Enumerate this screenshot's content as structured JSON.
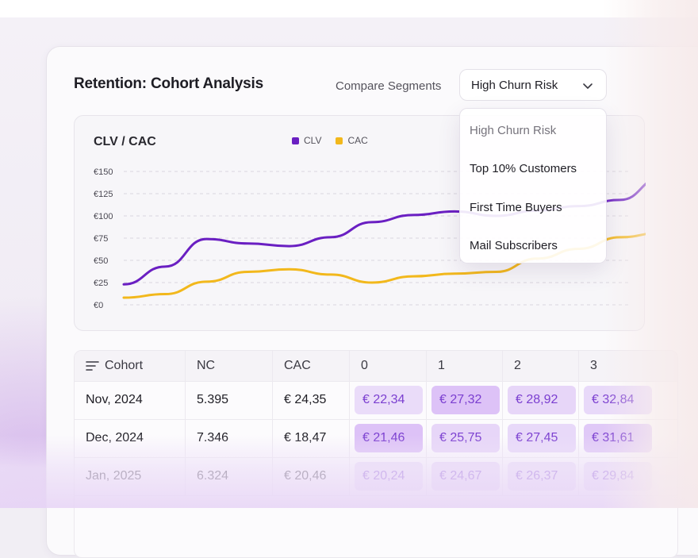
{
  "header": {
    "title": "Retention: Cohort Analysis",
    "compare_label": "Compare Segments",
    "selected_segment": "High Churn Risk"
  },
  "dropdown": {
    "options": [
      "High Churn Risk",
      "Top 10% Customers",
      "First Time Buyers",
      "Mail Subscribers"
    ]
  },
  "chart": {
    "title": "CLV / CAC",
    "legend": [
      {
        "label": "CLV",
        "color": "#6a1fc2"
      },
      {
        "label": "CAC",
        "color": "#f2b81c"
      }
    ]
  },
  "chart_data": {
    "type": "line",
    "title": "CLV / CAC",
    "x": [
      "1",
      "2",
      "3",
      "4",
      "5",
      "6",
      "7",
      "8",
      "9",
      "10",
      "11",
      "12",
      "13",
      "14"
    ],
    "ylim": [
      0,
      150
    ],
    "yticks": [
      "€0",
      "€25",
      "€50",
      "€75",
      "€100",
      "€125",
      "€150"
    ],
    "grid": true,
    "legend_position": "top",
    "series": [
      {
        "name": "CLV",
        "color": "#6a1fc2",
        "values": [
          23,
          43,
          74,
          69,
          66,
          76,
          93,
          101,
          105,
          100,
          106,
          111,
          118,
          143
        ]
      },
      {
        "name": "CAC",
        "color": "#f2b81c",
        "values": [
          8,
          12,
          26,
          37,
          40,
          34,
          25,
          32,
          35,
          37,
          52,
          63,
          76,
          81
        ]
      }
    ]
  },
  "table": {
    "headers": [
      "Cohort",
      "NC",
      "CAC",
      "0",
      "1",
      "2",
      "3"
    ],
    "rows": [
      {
        "cohort": "Nov, 2024",
        "nc": "5.395",
        "cac": "€ 24,35",
        "values": [
          "€ 22,34",
          "€ 27,32",
          "€ 28,92",
          "€ 32,84"
        ]
      },
      {
        "cohort": "Dec, 2024",
        "nc": "7.346",
        "cac": "€ 18,47",
        "values": [
          "€ 21,46",
          "€ 25,75",
          "€ 27,45",
          "€ 31,61"
        ]
      },
      {
        "cohort": "Jan, 2025",
        "nc": "6.324",
        "cac": "€ 20,46",
        "values": [
          "€ 20,24",
          "€ 24,67",
          "€ 26,37",
          "€ 29,84"
        ]
      }
    ],
    "heat_levels": [
      [
        0.25,
        0.65,
        0.35,
        0.3
      ],
      [
        0.65,
        0.35,
        0.3,
        0.55
      ],
      [
        0.25,
        0.35,
        0.25,
        0.25
      ]
    ]
  },
  "colors": {
    "accent": "#6a1fc2",
    "secondary": "#f2b81c",
    "cell_text": "#7b3fd0"
  }
}
